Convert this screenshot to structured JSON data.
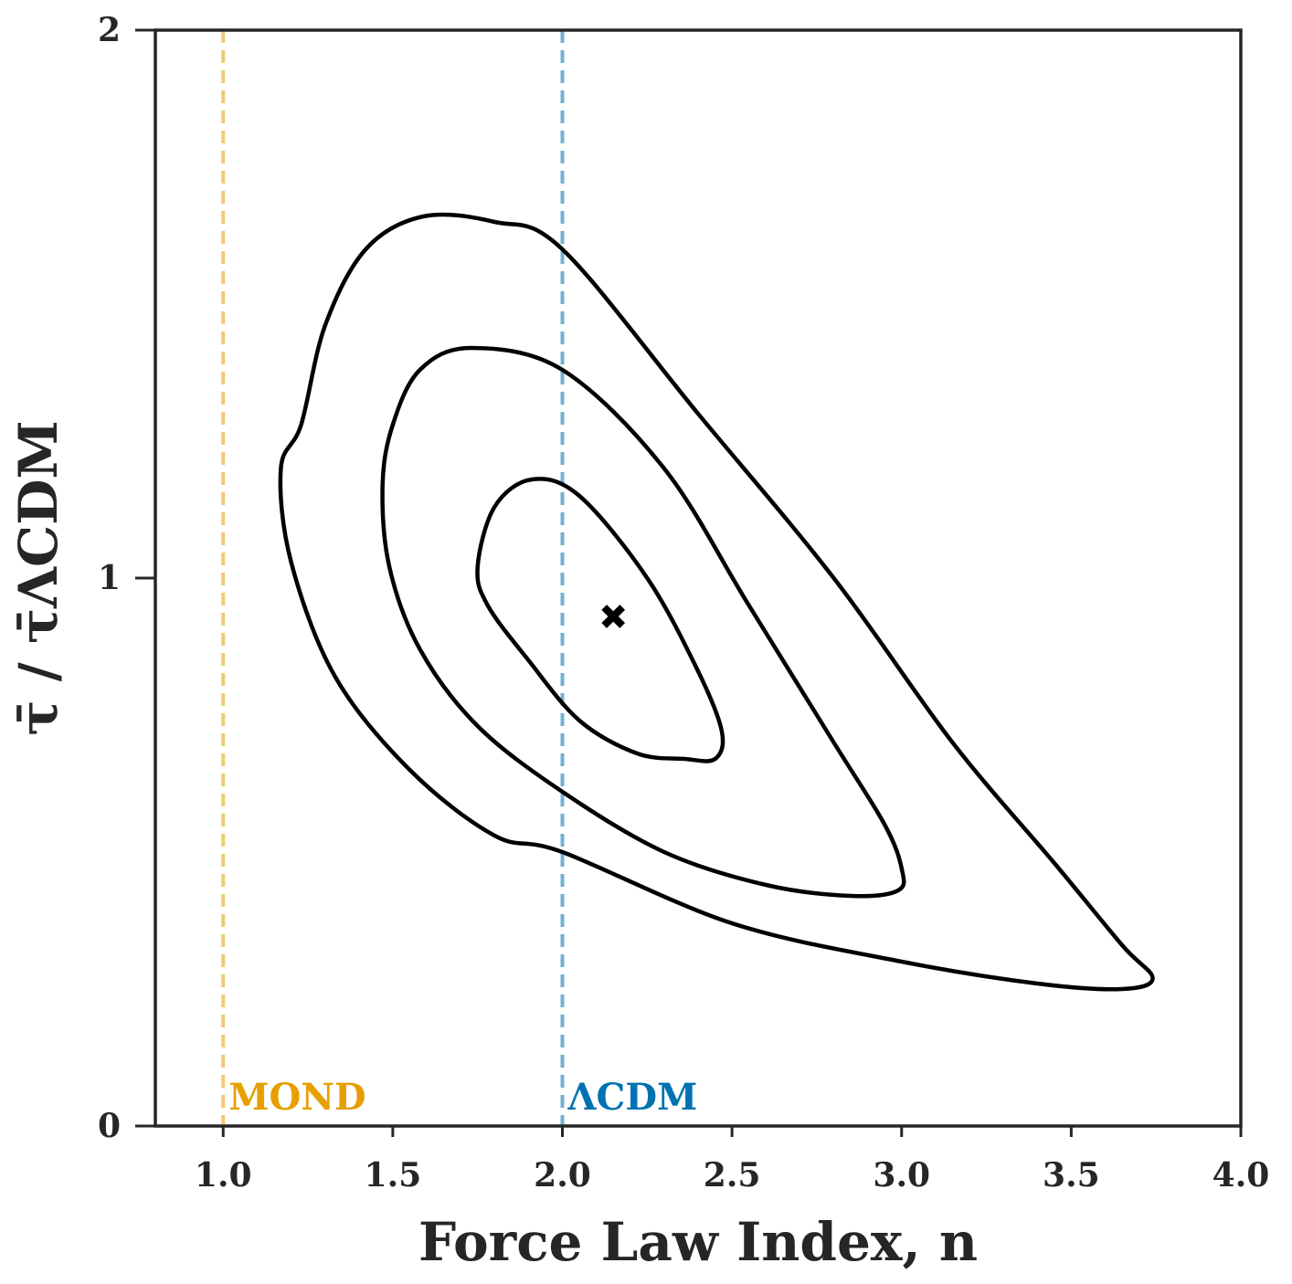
{
  "chart_data": {
    "type": "contour",
    "xlabel": "Force Law Index, n",
    "ylabel": "τ̄ / τ̄ΛCDM",
    "xlim": [
      0.8,
      4.0
    ],
    "ylim": [
      0,
      2
    ],
    "x_ticks": [
      "1.0",
      "1.5",
      "2.0",
      "2.5",
      "3.0",
      "3.5",
      "4.0"
    ],
    "y_ticks": [
      "0",
      "1",
      "2"
    ],
    "grid": false,
    "reference_lines": [
      {
        "label": "MOND",
        "x": 1.0,
        "color": "#E69F00",
        "style": "dashed"
      },
      {
        "label": "ΛCDM",
        "x": 2.0,
        "color": "#0072B2",
        "style": "dashed"
      }
    ],
    "best_fit": {
      "x": 2.15,
      "y": 0.93,
      "marker": "x"
    },
    "contours": [
      {
        "level": "inner",
        "points": [
          [
            1.91,
            1.18
          ],
          [
            1.8,
            1.13
          ],
          [
            1.75,
            1.02
          ],
          [
            1.78,
            0.95
          ],
          [
            1.9,
            0.85
          ],
          [
            2.05,
            0.74
          ],
          [
            2.22,
            0.68
          ],
          [
            2.36,
            0.67
          ],
          [
            2.45,
            0.67
          ],
          [
            2.47,
            0.72
          ],
          [
            2.4,
            0.83
          ],
          [
            2.25,
            1.0
          ],
          [
            2.05,
            1.15
          ]
        ]
      },
      {
        "level": "middle",
        "points": [
          [
            1.73,
            1.42
          ],
          [
            1.58,
            1.38
          ],
          [
            1.5,
            1.28
          ],
          [
            1.47,
            1.17
          ],
          [
            1.49,
            1.02
          ],
          [
            1.58,
            0.87
          ],
          [
            1.75,
            0.73
          ],
          [
            2.0,
            0.61
          ],
          [
            2.3,
            0.5
          ],
          [
            2.6,
            0.44
          ],
          [
            2.85,
            0.42
          ],
          [
            2.99,
            0.43
          ],
          [
            3.0,
            0.47
          ],
          [
            2.95,
            0.55
          ],
          [
            2.8,
            0.7
          ],
          [
            2.55,
            0.95
          ],
          [
            2.3,
            1.2
          ],
          [
            2.0,
            1.38
          ]
        ]
      },
      {
        "level": "outer",
        "points": [
          [
            1.59,
            1.66
          ],
          [
            1.42,
            1.6
          ],
          [
            1.3,
            1.46
          ],
          [
            1.23,
            1.28
          ],
          [
            1.17,
            1.2
          ],
          [
            1.2,
            1.03
          ],
          [
            1.33,
            0.82
          ],
          [
            1.55,
            0.65
          ],
          [
            1.8,
            0.53
          ],
          [
            2.0,
            0.5
          ],
          [
            2.5,
            0.37
          ],
          [
            3.0,
            0.3
          ],
          [
            3.4,
            0.26
          ],
          [
            3.65,
            0.25
          ],
          [
            3.74,
            0.27
          ],
          [
            3.65,
            0.33
          ],
          [
            3.45,
            0.48
          ],
          [
            3.15,
            0.7
          ],
          [
            2.8,
            1.0
          ],
          [
            2.4,
            1.3
          ],
          [
            2.0,
            1.6
          ],
          [
            1.8,
            1.65
          ]
        ]
      }
    ]
  }
}
